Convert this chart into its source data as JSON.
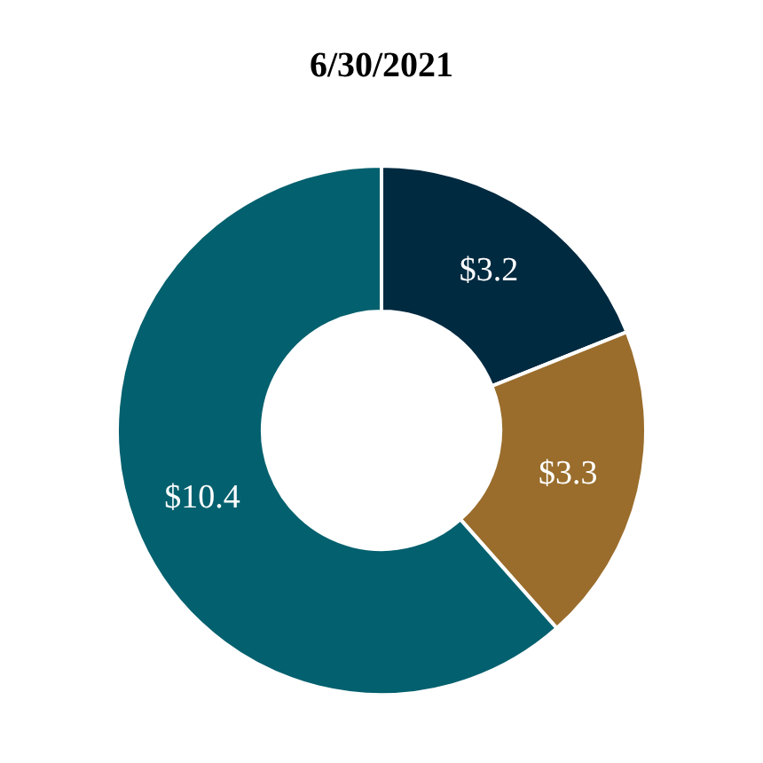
{
  "chart_data": {
    "type": "donut",
    "title": "6/30/2021",
    "categories": [
      null,
      null,
      null
    ],
    "values": [
      3.2,
      3.3,
      10.4
    ],
    "colors": [
      "#002a40",
      "#9a6d2c",
      "#03606e"
    ],
    "value_labels": [
      "$3.2",
      "$3.3",
      "$10.4"
    ],
    "legend": false
  }
}
